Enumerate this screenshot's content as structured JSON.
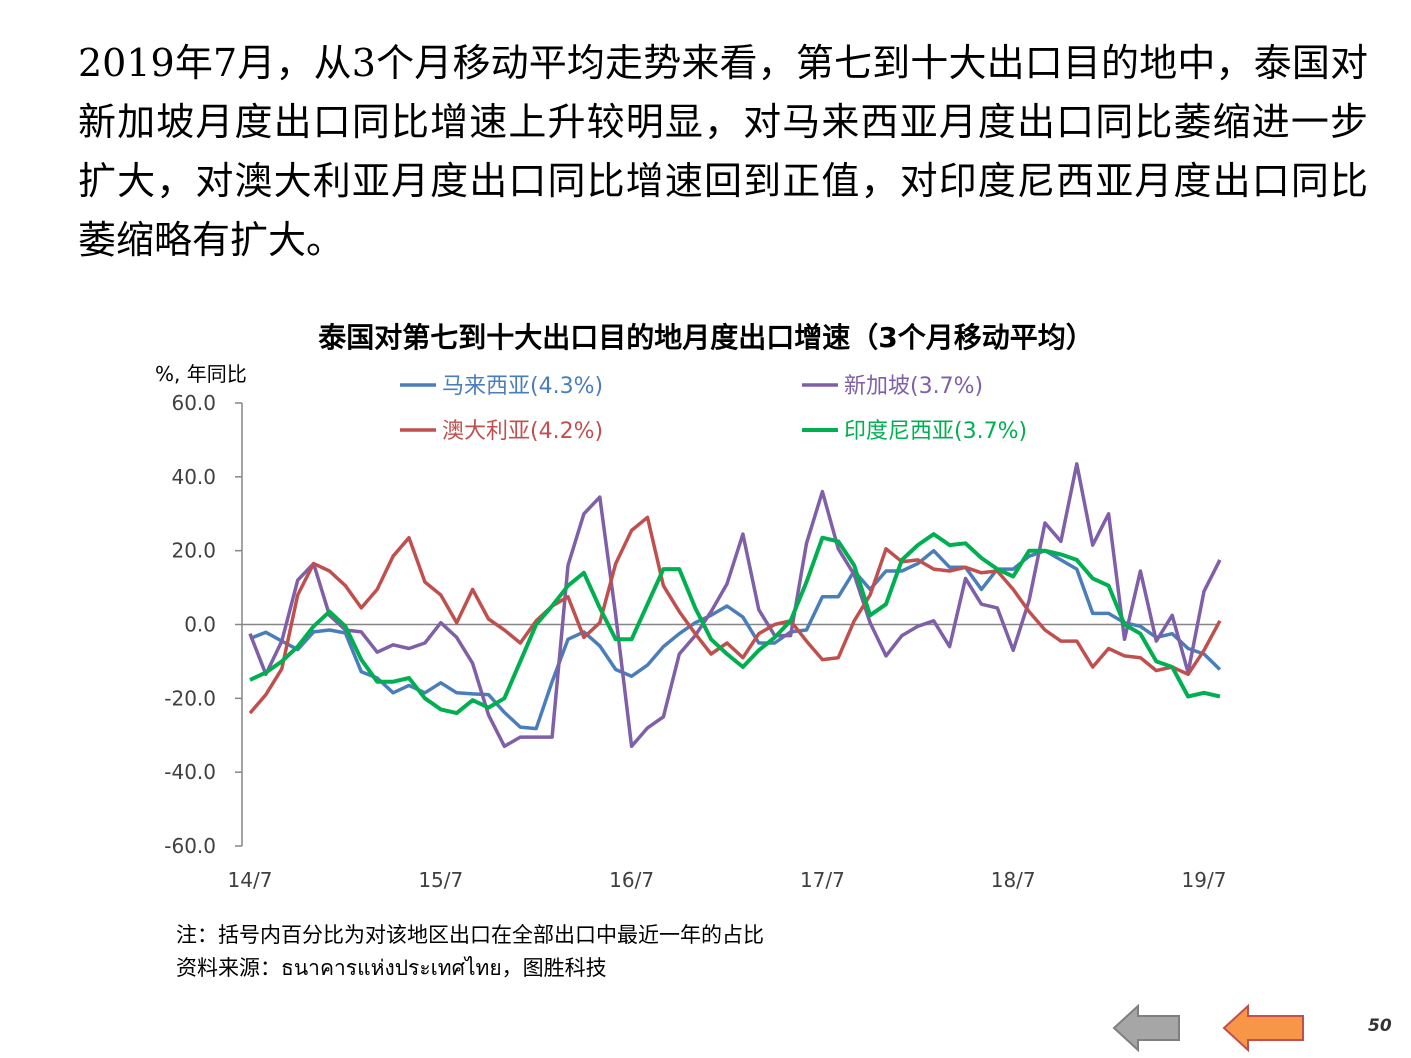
{
  "slide": {
    "intro_text": "2019年7月，从3个月移动平均走势来看，第七到十大出口目的地中，泰国对新加坡月度出口同比增速上升较明显，对马来西亚月度出口同比萎缩进一步扩大，对澳大利亚月度出口同比增速回到正值，对印度尼西亚月度出口同比萎缩略有扩大。",
    "note": "注：括号内百分比为对该地区出口在全部出口中最近一年的占比",
    "source": "资料来源：ธนาคารแห่งประเทศไทย，图胜科技",
    "page_number": "50",
    "nav": {
      "back_color": "#A6A6A6",
      "next_color": "#F79646"
    }
  },
  "chart_data": {
    "type": "line",
    "title": "泰国对第七到十大出口目的地月度出口增速（3个月移动平均）",
    "ylabel": "%, 年同比",
    "ylim": [
      -60,
      60
    ],
    "yticks": [
      "60.0",
      "40.0",
      "20.0",
      "0.0",
      "-20.0",
      "-40.0",
      "-60.0"
    ],
    "x_labels": [
      "14/7",
      "15/7",
      "16/7",
      "17/7",
      "18/7",
      "19/7"
    ],
    "x_start": "2014-07",
    "x_end": "2019-07",
    "legend_position": "top",
    "series": [
      {
        "name": "马来西亚(4.3%)",
        "color": "#4A7EBB",
        "values": [
          -3.8,
          -2.1,
          -4.5,
          -6.8,
          -2.0,
          -1.5,
          -2.3,
          -12.8,
          -14.5,
          -18.5,
          -16.5,
          -18.5,
          -15.8,
          -18.5,
          -18.8,
          -19.0,
          -23.8,
          -27.8,
          -28.2,
          -15.5,
          -4.0,
          -2.0,
          -5.8,
          -12.2,
          -14.0,
          -11.0,
          -6.0,
          -2.5,
          0.5,
          2.5,
          5.0,
          2.0,
          -5.0,
          -5.0,
          -2.0,
          -1.5,
          7.5,
          7.5,
          14.5,
          9.5,
          14.5,
          14.5,
          16.5,
          20.0,
          15.5,
          15.5,
          9.5,
          15.0,
          15.0,
          18.5,
          20.0,
          17.5,
          15.0,
          3.0,
          3.0,
          0.5,
          -0.5,
          -3.5,
          -2.5,
          -6.5,
          -8.0,
          -12.2
        ]
      },
      {
        "name": "新加坡(3.7%)",
        "color": "#7F5FA8",
        "values": [
          -2.5,
          -13.5,
          -4.5,
          12.0,
          16.5,
          2.5,
          -1.5,
          -2.0,
          -7.5,
          -5.5,
          -6.5,
          -5.0,
          0.5,
          -3.5,
          -10.5,
          -24.5,
          -33.0,
          -30.5,
          -30.5,
          -30.5,
          16.0,
          30.0,
          34.5,
          2.5,
          -33.0,
          -28.0,
          -25.0,
          -8.0,
          -3.0,
          3.5,
          11.0,
          24.5,
          4.0,
          -3.0,
          -3.0,
          22.0,
          36.0,
          20.5,
          13.5,
          0.5,
          -8.5,
          -3.0,
          -0.5,
          1.0,
          -6.0,
          12.5,
          5.5,
          4.5,
          -7.0,
          6.5,
          27.5,
          22.5,
          43.5,
          21.5,
          30.0,
          -4.0,
          14.5,
          -4.5,
          2.5,
          -13.0,
          9.0,
          17.5
        ]
      },
      {
        "name": "澳大利亚(4.2%)",
        "color": "#C0504D",
        "values": [
          -24.0,
          -19.0,
          -12.0,
          8.0,
          16.5,
          14.5,
          10.5,
          4.5,
          9.5,
          18.5,
          23.5,
          11.5,
          8.0,
          0.5,
          9.5,
          1.5,
          -1.5,
          -5.0,
          1.0,
          5.0,
          7.5,
          -3.5,
          0.5,
          16.5,
          25.5,
          29.0,
          10.5,
          3.5,
          -2.5,
          -8.0,
          -5.0,
          -9.0,
          -2.5,
          0.0,
          1.0,
          -4.5,
          -9.5,
          -9.0,
          1.0,
          8.0,
          20.5,
          17.0,
          17.5,
          15.0,
          14.5,
          15.5,
          14.0,
          14.5,
          9.5,
          3.5,
          -1.5,
          -4.5,
          -4.5,
          -11.5,
          -6.5,
          -8.5,
          -9.0,
          -12.5,
          -11.5,
          -13.5,
          -7.0,
          1.0
        ]
      },
      {
        "name": "印度尼西亚(3.7%)",
        "color": "#00B050",
        "values": [
          -15.0,
          -13.0,
          -10.0,
          -6.0,
          -0.5,
          3.5,
          -0.5,
          -9.5,
          -15.5,
          -15.5,
          -14.5,
          -20.0,
          -23.0,
          -24.0,
          -20.5,
          -22.5,
          -20.0,
          -10.0,
          0.0,
          5.0,
          10.5,
          14.0,
          4.5,
          -4.0,
          -4.0,
          5.5,
          15.0,
          15.0,
          4.5,
          -4.0,
          -8.0,
          -11.5,
          -7.0,
          -3.5,
          1.0,
          11.5,
          23.5,
          22.5,
          16.0,
          2.5,
          5.5,
          17.5,
          21.5,
          24.5,
          21.5,
          22.0,
          18.0,
          15.0,
          13.0,
          20.0,
          20.0,
          19.0,
          17.5,
          12.5,
          10.5,
          0.0,
          -2.5,
          -10.0,
          -11.5,
          -19.5,
          -18.5,
          -19.5
        ]
      }
    ]
  }
}
